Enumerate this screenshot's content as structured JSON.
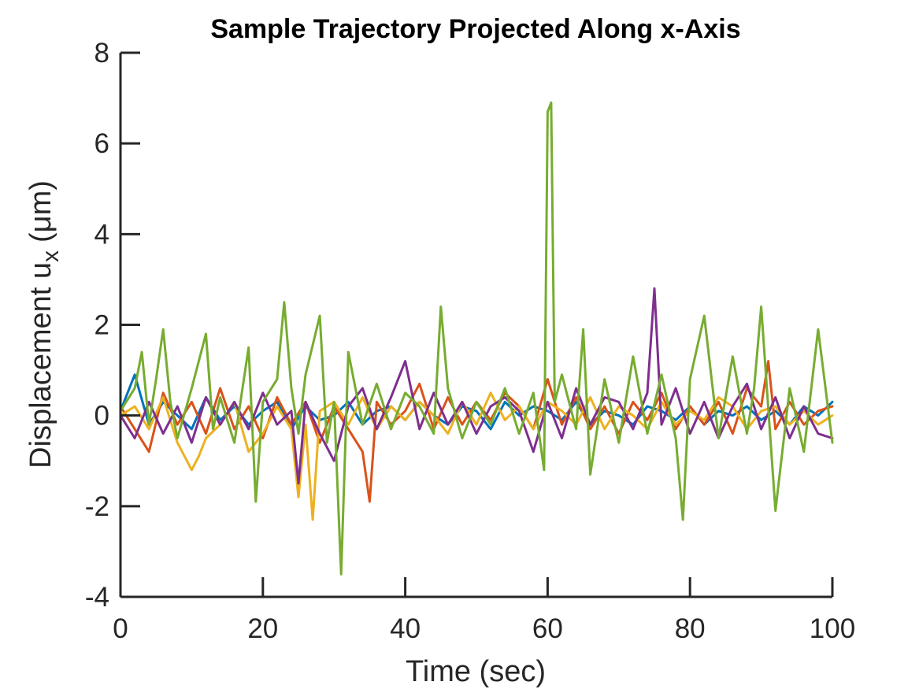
{
  "chart_data": {
    "type": "line",
    "title": "Sample Trajectory Projected Along x-Axis",
    "xlabel": "Time (sec)",
    "ylabel": "Displacement u",
    "ylabel_subscript": "x",
    "ylabel_unit": "(μm)",
    "xlim": [
      0,
      100
    ],
    "ylim": [
      -4,
      8
    ],
    "xticks": [
      0,
      20,
      40,
      60,
      80,
      100
    ],
    "xtick_labels": [
      "0",
      "20",
      "40",
      "60",
      "80",
      "100"
    ],
    "yticks": [
      -4,
      -2,
      0,
      2,
      4,
      6,
      8
    ],
    "ytick_labels": [
      "-4",
      "-2",
      "0",
      "2",
      "4",
      "6",
      "8"
    ],
    "grid": false,
    "series": [
      {
        "color": "#0072BD",
        "x": [
          0,
          2,
          4,
          6,
          8,
          10,
          12,
          14,
          16,
          18,
          20,
          22,
          24,
          26,
          28,
          30,
          32,
          34,
          36,
          38,
          40,
          42,
          44,
          46,
          48,
          50,
          52,
          54,
          56,
          58,
          60,
          62,
          64,
          66,
          68,
          70,
          72,
          74,
          76,
          78,
          80,
          82,
          84,
          86,
          88,
          90,
          92,
          94,
          96,
          98,
          100
        ],
        "values": [
          0.1,
          0.9,
          -0.2,
          0.3,
          0.0,
          -0.3,
          0.4,
          -0.1,
          0.2,
          -0.2,
          0.1,
          0.3,
          -0.3,
          0.2,
          -0.1,
          0.0,
          0.3,
          -0.2,
          0.1,
          0.2,
          -0.1,
          0.3,
          0.0,
          -0.2,
          0.2,
          0.1,
          -0.3,
          0.3,
          0.0,
          0.2,
          0.1,
          -0.1,
          0.3,
          -0.2,
          0.1,
          0.0,
          -0.2,
          0.2,
          0.1,
          -0.1,
          0.2,
          -0.2,
          0.1,
          0.0,
          0.2,
          -0.1,
          0.1,
          -0.2,
          0.2,
          0.0,
          0.3
        ]
      },
      {
        "color": "#D95319",
        "x": [
          0,
          2,
          4,
          6,
          8,
          10,
          12,
          14,
          16,
          18,
          20,
          22,
          24,
          26,
          28,
          30,
          32,
          34,
          35,
          36,
          38,
          40,
          42,
          44,
          46,
          48,
          50,
          52,
          54,
          56,
          58,
          60,
          62,
          64,
          66,
          68,
          70,
          72,
          74,
          76,
          78,
          80,
          82,
          84,
          86,
          88,
          90,
          91,
          92,
          94,
          96,
          98,
          100
        ],
        "values": [
          0.2,
          -0.3,
          -0.8,
          0.5,
          -0.2,
          0.3,
          -0.4,
          0.6,
          -0.3,
          0.2,
          -0.5,
          0.4,
          -0.2,
          0.3,
          -0.6,
          0.2,
          -0.3,
          -0.8,
          -1.9,
          0.3,
          -0.2,
          0.1,
          0.7,
          -0.3,
          0.4,
          -0.2,
          0.3,
          -0.1,
          0.5,
          0.2,
          -0.3,
          0.8,
          -0.2,
          0.4,
          -0.3,
          0.2,
          -0.4,
          0.3,
          -0.1,
          0.5,
          -0.3,
          0.2,
          -0.2,
          0.3,
          -0.4,
          0.6,
          0.2,
          1.2,
          -0.3,
          0.3,
          -0.2,
          0.1,
          0.2
        ]
      },
      {
        "color": "#EDB120",
        "x": [
          0,
          2,
          4,
          6,
          8,
          10,
          11,
          12,
          14,
          16,
          18,
          20,
          22,
          24,
          25,
          26,
          27,
          28,
          30,
          32,
          34,
          36,
          38,
          40,
          42,
          44,
          46,
          48,
          50,
          52,
          54,
          56,
          58,
          60,
          62,
          64,
          66,
          68,
          70,
          72,
          74,
          76,
          78,
          80,
          82,
          84,
          86,
          88,
          90,
          92,
          94,
          96,
          98,
          100
        ],
        "values": [
          0.0,
          0.2,
          -0.3,
          0.4,
          -0.6,
          -1.2,
          -0.9,
          -0.5,
          -0.2,
          0.3,
          -0.8,
          -0.4,
          0.2,
          -0.3,
          -1.8,
          -0.2,
          -2.3,
          0.1,
          0.3,
          -0.2,
          0.4,
          -0.3,
          0.2,
          -0.1,
          0.3,
          0.0,
          -0.4,
          0.3,
          -0.2,
          0.5,
          -0.1,
          0.2,
          -0.3,
          0.3,
          0.1,
          -0.2,
          0.4,
          -0.3,
          0.2,
          0.0,
          -0.3,
          0.3,
          -0.2,
          0.1,
          -0.1,
          0.4,
          0.2,
          -0.3,
          0.1,
          0.2,
          -0.2,
          0.1,
          -0.2,
          0.0
        ]
      },
      {
        "color": "#7E2F8E",
        "x": [
          0,
          2,
          4,
          6,
          8,
          10,
          12,
          14,
          16,
          18,
          20,
          22,
          24,
          25,
          26,
          28,
          30,
          32,
          34,
          36,
          38,
          40,
          42,
          44,
          46,
          48,
          50,
          52,
          54,
          56,
          58,
          60,
          62,
          64,
          66,
          68,
          70,
          72,
          74,
          75,
          76,
          78,
          80,
          82,
          84,
          86,
          88,
          90,
          92,
          94,
          96,
          98,
          100
        ],
        "values": [
          0.0,
          -0.5,
          0.3,
          -0.4,
          0.2,
          -0.6,
          0.4,
          -0.2,
          0.3,
          -0.3,
          0.5,
          -0.2,
          0.1,
          -1.5,
          0.3,
          -0.4,
          -1.0,
          0.2,
          0.6,
          -0.3,
          0.4,
          1.2,
          -0.3,
          0.5,
          -0.2,
          0.3,
          -0.4,
          0.2,
          0.4,
          0.1,
          -0.8,
          0.3,
          -0.5,
          0.6,
          -0.2,
          0.4,
          0.3,
          -0.3,
          0.5,
          2.8,
          -0.2,
          0.6,
          -0.4,
          0.3,
          -0.5,
          0.2,
          0.7,
          -0.3,
          0.4,
          -0.5,
          0.2,
          -0.4,
          -0.5
        ]
      },
      {
        "color": "#77AC30",
        "x": [
          0,
          2,
          3,
          4,
          5,
          6,
          7,
          8,
          10,
          12,
          13,
          14,
          16,
          18,
          19,
          20,
          22,
          23,
          24,
          25,
          26,
          28,
          29,
          30,
          31,
          32,
          34,
          36,
          38,
          40,
          42,
          44,
          45,
          46,
          48,
          50,
          52,
          54,
          56,
          58,
          59.5,
          60,
          60.5,
          61,
          62,
          64,
          65,
          66,
          68,
          70,
          72,
          74,
          76,
          78,
          79,
          80,
          82,
          84,
          86,
          88,
          89,
          90,
          92,
          94,
          96,
          98,
          100
        ],
        "values": [
          0.1,
          0.6,
          1.4,
          -0.2,
          0.8,
          1.9,
          0.3,
          -0.5,
          0.6,
          1.8,
          -0.3,
          0.4,
          -0.6,
          1.5,
          -1.9,
          0.3,
          0.8,
          2.5,
          0.6,
          -0.4,
          0.9,
          2.2,
          -0.6,
          0.3,
          -3.5,
          1.4,
          -0.2,
          0.7,
          -0.3,
          0.5,
          0.2,
          -0.4,
          2.4,
          0.6,
          -0.5,
          0.3,
          -0.2,
          0.6,
          -0.4,
          0.5,
          -1.2,
          6.7,
          6.9,
          0.3,
          0.9,
          -0.3,
          1.9,
          -1.3,
          0.8,
          -0.6,
          1.3,
          -0.4,
          0.9,
          -0.5,
          -2.3,
          0.8,
          2.2,
          -0.5,
          1.3,
          -0.4,
          0.6,
          2.4,
          -2.1,
          0.6,
          -0.8,
          1.9,
          -0.6
        ]
      }
    ]
  }
}
